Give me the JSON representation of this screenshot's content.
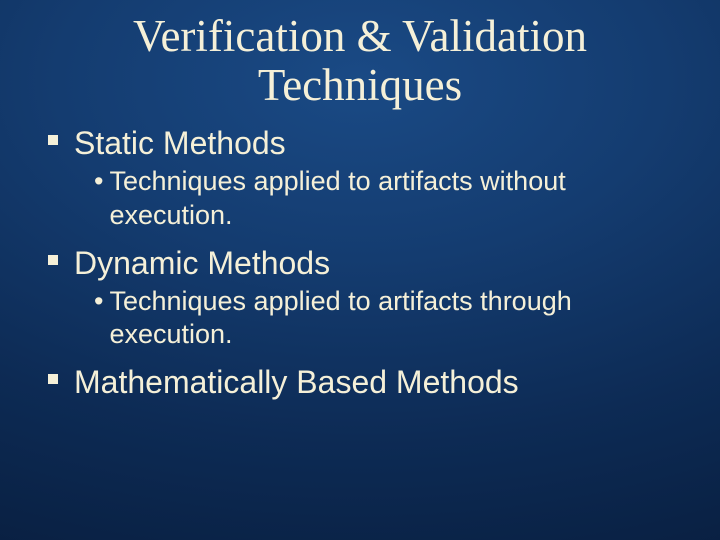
{
  "slide": {
    "background_gradient": {
      "type": "radial",
      "center": "50% 15%",
      "stops": [
        "#1a4a85",
        "#143c70",
        "#0d2b55",
        "#071a38"
      ]
    },
    "text_color": "#f5f0d8",
    "title": {
      "text": "Verification & Validation Techniques",
      "font_family": "Times New Roman",
      "font_size_pt": 34,
      "font_weight": 400,
      "align": "center"
    },
    "bullets": [
      {
        "level": 1,
        "marker": "square",
        "text": "Static Methods",
        "font_family": "Verdana",
        "font_size_pt": 24
      },
      {
        "level": 2,
        "marker": "disc",
        "text": "Techniques applied to artifacts without execution.",
        "font_family": "Verdana",
        "font_size_pt": 20
      },
      {
        "level": 1,
        "marker": "square",
        "text": "Dynamic Methods",
        "font_family": "Verdana",
        "font_size_pt": 24
      },
      {
        "level": 2,
        "marker": "disc",
        "text": "Techniques applied to artifacts through execution.",
        "font_family": "Verdana",
        "font_size_pt": 20
      },
      {
        "level": 1,
        "marker": "square",
        "text": "Mathematically Based Methods",
        "font_family": "Verdana",
        "font_size_pt": 24
      }
    ]
  }
}
